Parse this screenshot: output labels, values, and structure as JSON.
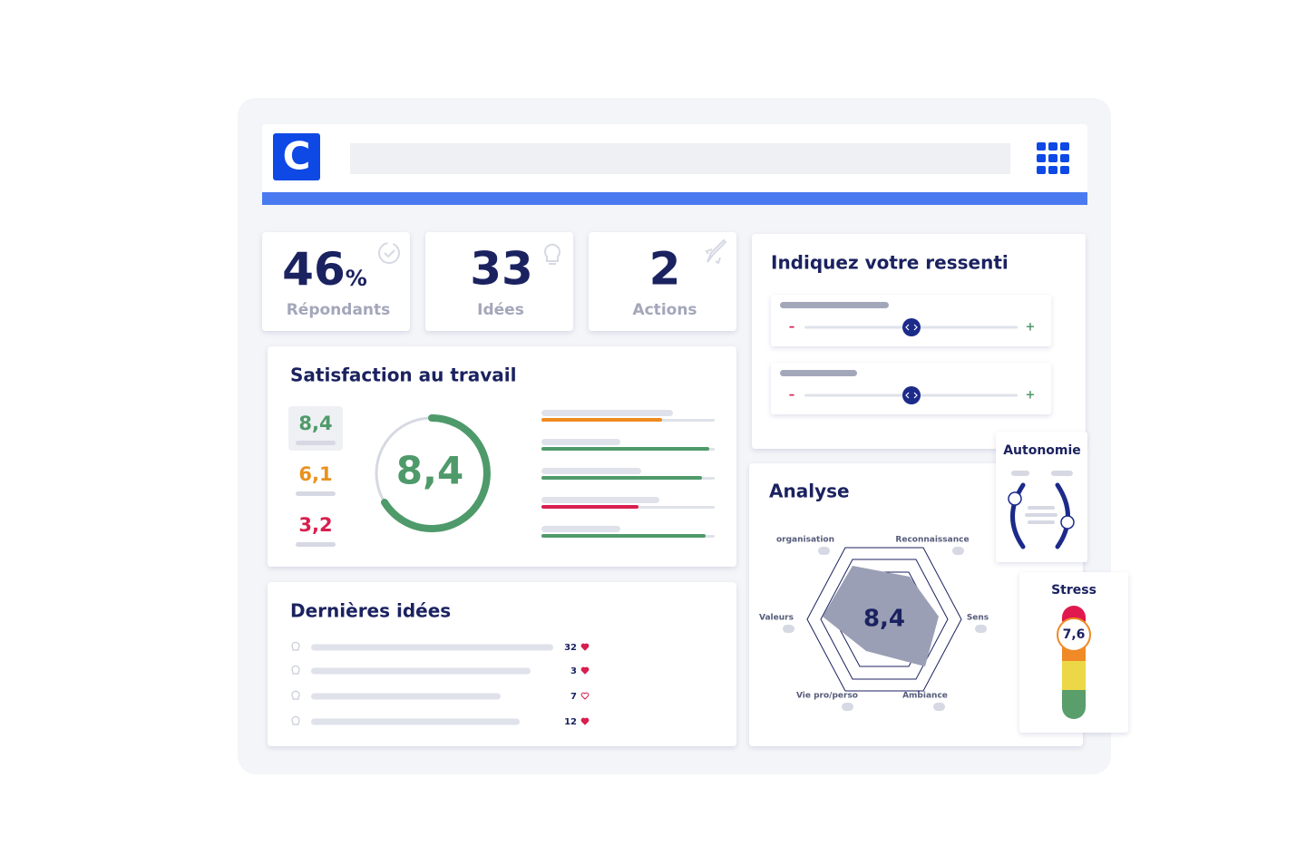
{
  "header": {
    "logo": "C"
  },
  "stats": [
    {
      "value": "46",
      "unit": "%",
      "label": "Répondants"
    },
    {
      "value": "33",
      "label": "Idées"
    },
    {
      "value": "2",
      "label": "Actions"
    }
  ],
  "satisfaction": {
    "title": "Satisfaction au travail",
    "scores": [
      "8,4",
      "6,1",
      "3,2"
    ],
    "main": "8,4"
  },
  "ideas": {
    "title": "Dernières idées",
    "counts": [
      "32",
      "3",
      "7",
      "12"
    ]
  },
  "ressenti": {
    "title": "Indiquez votre ressenti",
    "sliders": [
      {
        "minus": "–",
        "plus": "+"
      },
      {
        "minus": "–",
        "plus": "+"
      }
    ]
  },
  "analyse": {
    "title": "Analyse",
    "axes": [
      "organisation",
      "Reconnaissance",
      "Sens",
      "Ambiance",
      "Vie pro/perso",
      "Valeurs"
    ],
    "score": "8,4"
  },
  "autonomie": {
    "title": "Autonomie"
  },
  "stress": {
    "title": "Stress",
    "score": "7,6"
  }
}
